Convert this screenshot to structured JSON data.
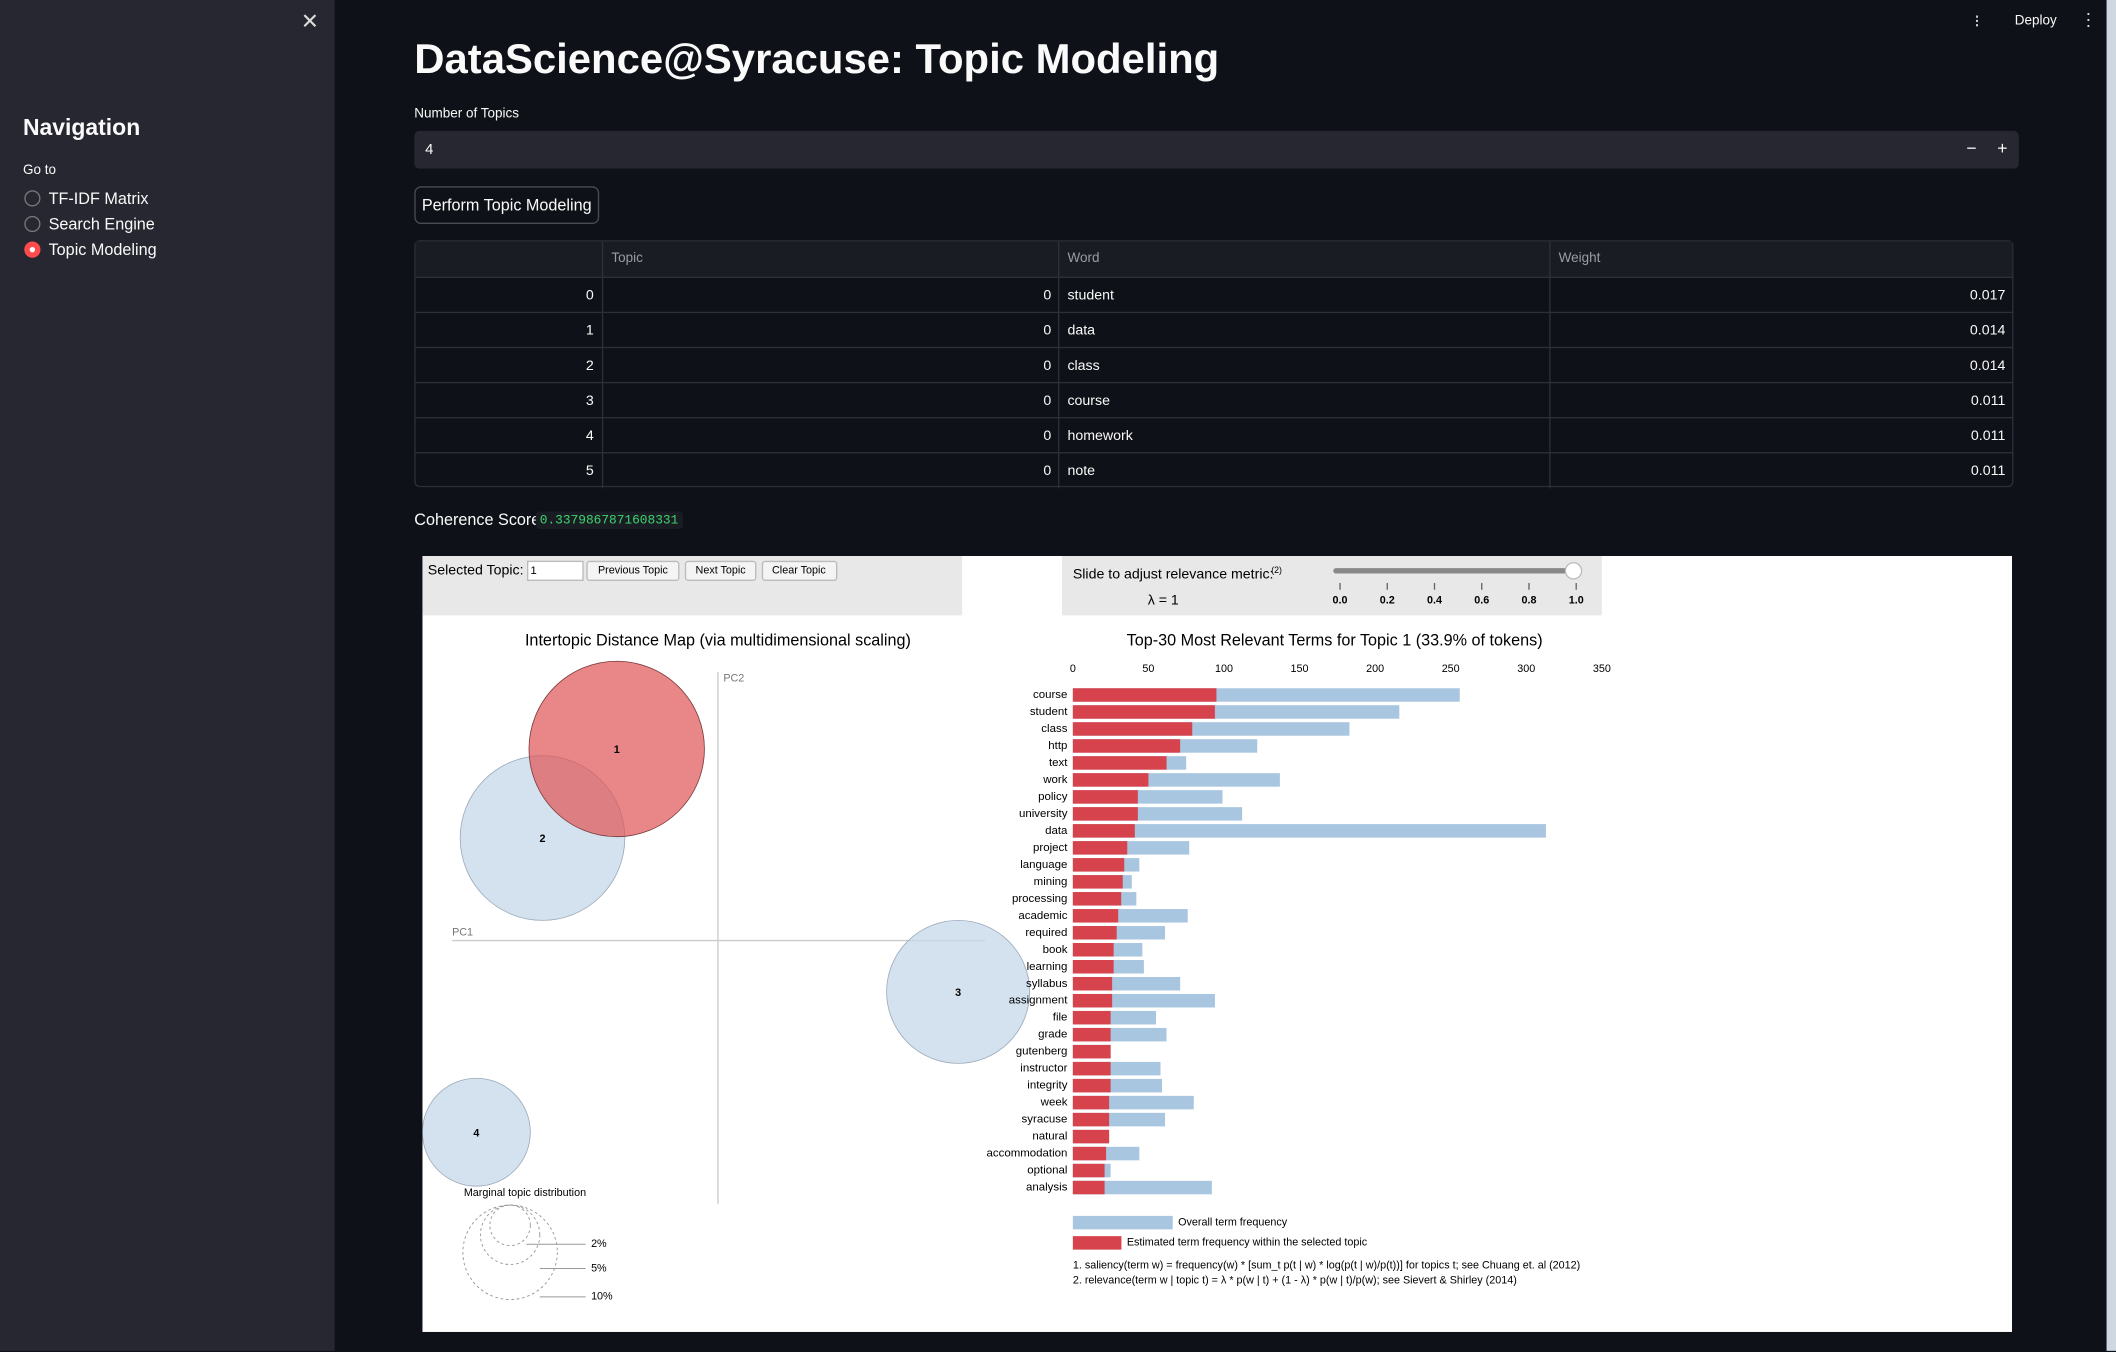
{
  "sidebar": {
    "title": "Navigation",
    "radio_label": "Go to",
    "options": [
      "TF-IDF Matrix",
      "Search Engine",
      "Topic Modeling"
    ],
    "selected": 2
  },
  "header": {
    "deploy": "Deploy"
  },
  "main": {
    "title": "DataScience@Syracuse: Topic Modeling",
    "number_input": {
      "label": "Number of Topics",
      "value": 4
    },
    "button": "Perform Topic Modeling",
    "table": {
      "columns": [
        "Topic",
        "Word",
        "Weight"
      ],
      "rows": [
        [
          0,
          0,
          "student",
          0.017
        ],
        [
          1,
          0,
          "data",
          0.014
        ],
        [
          2,
          0,
          "class",
          0.014
        ],
        [
          3,
          0,
          "course",
          0.011
        ],
        [
          4,
          0,
          "homework",
          0.011
        ],
        [
          5,
          0,
          "note",
          0.011
        ]
      ]
    },
    "coherence": {
      "label": "Coherence Score:",
      "value": "0.3379867871608331"
    }
  },
  "ldavis": {
    "selected_topic_label": "Selected Topic:",
    "selected_topic": 1,
    "buttons": [
      "Previous Topic",
      "Next Topic",
      "Clear Topic"
    ],
    "slider_label": "Slide to adjust relevance metric:",
    "slider_footnote": "(2)",
    "lambda_label": "λ = 1",
    "slider_ticks": [
      {
        "value": 0,
        "label": "0.0"
      },
      {
        "value": 0.2,
        "label": "0.2"
      },
      {
        "value": 0.4,
        "label": "0.4"
      },
      {
        "value": 0.6,
        "label": "0.6"
      },
      {
        "value": 0.8,
        "label": "0.8"
      },
      {
        "value": 1,
        "label": "1.0"
      }
    ],
    "map": {
      "title": "Intertopic Distance Map (via multidimensional scaling)",
      "pc1": "PC1",
      "pc2": "PC2",
      "topics": [
        "1",
        "2",
        "3",
        "4"
      ],
      "marginal_title": "Marginal topic distribution",
      "marginal_labels": [
        "2%",
        "5%",
        "10%"
      ]
    },
    "bar_chart": {
      "type": "bar",
      "orientation": "horizontal",
      "title": "Top-30 Most Relevant Terms for Topic 1 (33.9% of tokens)",
      "categories": [
        "course",
        "student",
        "class",
        "http",
        "text",
        "work",
        "policy",
        "university",
        "data",
        "project",
        "language",
        "mining",
        "processing",
        "academic",
        "required",
        "book",
        "learning",
        "syllabus",
        "assignment",
        "file",
        "grade",
        "gutenberg",
        "instructor",
        "integrity",
        "week",
        "syracuse",
        "natural",
        "accommodation",
        "optional",
        "analysis"
      ],
      "series": [
        {
          "name": "Overall term frequency",
          "color": "#a9c6e0",
          "values": [
            256,
            216,
            183,
            122,
            75,
            137,
            99,
            112,
            313,
            77,
            44,
            39,
            42,
            76,
            61,
            46,
            47,
            71,
            94,
            55,
            62,
            25,
            58,
            59,
            80,
            61,
            24,
            44,
            25,
            92
          ]
        },
        {
          "name": "Estimated term frequency within the selected topic",
          "color": "#d7434c",
          "values": [
            95,
            94,
            79,
            71,
            62,
            50,
            43,
            43,
            41,
            36,
            34,
            33,
            32,
            30,
            29,
            27,
            27,
            26,
            26,
            25,
            25,
            25,
            25,
            25,
            24,
            24,
            24,
            22,
            21,
            21
          ]
        }
      ],
      "xlim": [
        0,
        350
      ],
      "xticks": [
        0,
        50,
        100,
        150,
        200,
        250,
        300,
        350
      ]
    },
    "footnotes": [
      "1. saliency(term w) = frequency(w) * [sum_t p(t | w) * log(p(t | w)/p(t))] for topics t; see Chuang et. al (2012)",
      "2. relevance(term w | topic t) = λ * p(w | t) + (1 - λ) * p(w | t)/p(w); see Sievert & Shirley (2014)"
    ]
  }
}
